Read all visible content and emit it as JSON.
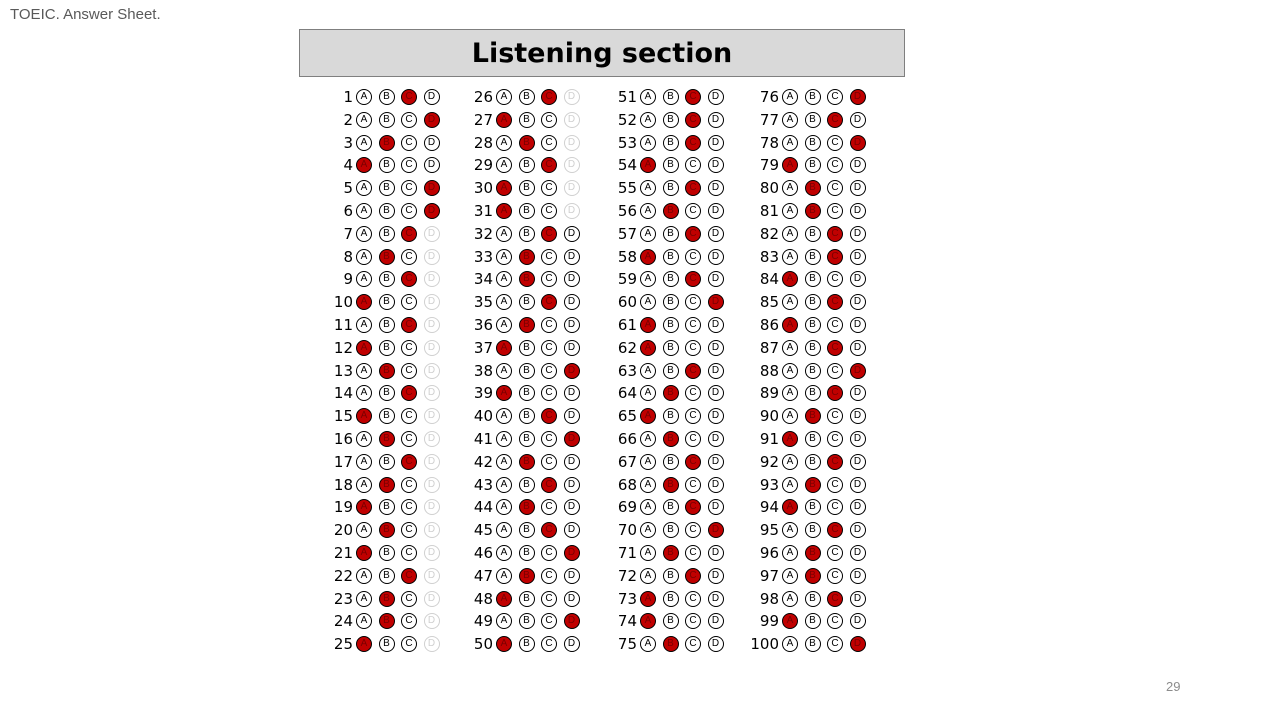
{
  "slide_title": "TOEIC. Answer Sheet.",
  "section_title": "Listening section",
  "page_number": "29",
  "options": [
    "A",
    "B",
    "C",
    "D"
  ],
  "colors": {
    "filled_bubble": "#c00000",
    "header_bg": "#d9d9d9"
  },
  "columns": [
    {
      "questions": [
        {
          "num": "1",
          "answer": "C",
          "faint_d": false
        },
        {
          "num": "2",
          "answer": "D",
          "faint_d": false
        },
        {
          "num": "3",
          "answer": "B",
          "faint_d": false
        },
        {
          "num": "4",
          "answer": "A",
          "faint_d": false
        },
        {
          "num": "5",
          "answer": "D",
          "faint_d": false
        },
        {
          "num": "6",
          "answer": "D",
          "faint_d": false
        },
        {
          "num": "7",
          "answer": "C",
          "faint_d": true
        },
        {
          "num": "8",
          "answer": "B",
          "faint_d": true
        },
        {
          "num": "9",
          "answer": "C",
          "faint_d": true
        },
        {
          "num": "10",
          "answer": "A",
          "faint_d": true
        },
        {
          "num": "11",
          "answer": "C",
          "faint_d": true
        },
        {
          "num": "12",
          "answer": "A",
          "faint_d": true
        },
        {
          "num": "13",
          "answer": "B",
          "faint_d": true
        },
        {
          "num": "14",
          "answer": "C",
          "faint_d": true
        },
        {
          "num": "15",
          "answer": "A",
          "faint_d": true
        },
        {
          "num": "16",
          "answer": "B",
          "faint_d": true
        },
        {
          "num": "17",
          "answer": "C",
          "faint_d": true
        },
        {
          "num": "18",
          "answer": "B",
          "faint_d": true
        },
        {
          "num": "19",
          "answer": "A",
          "faint_d": true
        },
        {
          "num": "20",
          "answer": "B",
          "faint_d": true
        },
        {
          "num": "21",
          "answer": "A",
          "faint_d": true
        },
        {
          "num": "22",
          "answer": "C",
          "faint_d": true
        },
        {
          "num": "23",
          "answer": "B",
          "faint_d": true
        },
        {
          "num": "24",
          "answer": "B",
          "faint_d": true
        },
        {
          "num": "25",
          "answer": "A",
          "faint_d": true
        }
      ]
    },
    {
      "questions": [
        {
          "num": "26",
          "answer": "C",
          "faint_d": true
        },
        {
          "num": "27",
          "answer": "A",
          "faint_d": true
        },
        {
          "num": "28",
          "answer": "B",
          "faint_d": true
        },
        {
          "num": "29",
          "answer": "C",
          "faint_d": true
        },
        {
          "num": "30",
          "answer": "A",
          "faint_d": true
        },
        {
          "num": "31",
          "answer": "A",
          "faint_d": true
        },
        {
          "num": "32",
          "answer": "C",
          "faint_d": false
        },
        {
          "num": "33",
          "answer": "B",
          "faint_d": false
        },
        {
          "num": "34",
          "answer": "B",
          "faint_d": false
        },
        {
          "num": "35",
          "answer": "C",
          "faint_d": false
        },
        {
          "num": "36",
          "answer": "B",
          "faint_d": false
        },
        {
          "num": "37",
          "answer": "A",
          "faint_d": false
        },
        {
          "num": "38",
          "answer": "D",
          "faint_d": false
        },
        {
          "num": "39",
          "answer": "A",
          "faint_d": false
        },
        {
          "num": "40",
          "answer": "C",
          "faint_d": false
        },
        {
          "num": "41",
          "answer": "D",
          "faint_d": false
        },
        {
          "num": "42",
          "answer": "B",
          "faint_d": false
        },
        {
          "num": "43",
          "answer": "C",
          "faint_d": false
        },
        {
          "num": "44",
          "answer": "B",
          "faint_d": false
        },
        {
          "num": "45",
          "answer": "C",
          "faint_d": false
        },
        {
          "num": "46",
          "answer": "D",
          "faint_d": false
        },
        {
          "num": "47",
          "answer": "B",
          "faint_d": false
        },
        {
          "num": "48",
          "answer": "A",
          "faint_d": false
        },
        {
          "num": "49",
          "answer": "D",
          "faint_d": false
        },
        {
          "num": "50",
          "answer": "A",
          "faint_d": false
        }
      ]
    },
    {
      "questions": [
        {
          "num": "51",
          "answer": "C",
          "faint_d": false
        },
        {
          "num": "52",
          "answer": "C",
          "faint_d": false
        },
        {
          "num": "53",
          "answer": "C",
          "faint_d": false
        },
        {
          "num": "54",
          "answer": "A",
          "faint_d": false
        },
        {
          "num": "55",
          "answer": "C",
          "faint_d": false
        },
        {
          "num": "56",
          "answer": "B",
          "faint_d": false
        },
        {
          "num": "57",
          "answer": "C",
          "faint_d": false
        },
        {
          "num": "58",
          "answer": "A",
          "faint_d": false
        },
        {
          "num": "59",
          "answer": "C",
          "faint_d": false
        },
        {
          "num": "60",
          "answer": "D",
          "faint_d": false
        },
        {
          "num": "61",
          "answer": "A",
          "faint_d": false
        },
        {
          "num": "62",
          "answer": "A",
          "faint_d": false
        },
        {
          "num": "63",
          "answer": "C",
          "faint_d": false
        },
        {
          "num": "64",
          "answer": "B",
          "faint_d": false
        },
        {
          "num": "65",
          "answer": "A",
          "faint_d": false
        },
        {
          "num": "66",
          "answer": "B",
          "faint_d": false
        },
        {
          "num": "67",
          "answer": "C",
          "faint_d": false
        },
        {
          "num": "68",
          "answer": "B",
          "faint_d": false
        },
        {
          "num": "69",
          "answer": "C",
          "faint_d": false
        },
        {
          "num": "70",
          "answer": "D",
          "faint_d": false
        },
        {
          "num": "71",
          "answer": "B",
          "faint_d": false
        },
        {
          "num": "72",
          "answer": "C",
          "faint_d": false
        },
        {
          "num": "73",
          "answer": "A",
          "faint_d": false
        },
        {
          "num": "74",
          "answer": "A",
          "faint_d": false
        },
        {
          "num": "75",
          "answer": "B",
          "faint_d": false
        }
      ]
    },
    {
      "questions": [
        {
          "num": "76",
          "answer": "D",
          "faint_d": false
        },
        {
          "num": "77",
          "answer": "C",
          "faint_d": false
        },
        {
          "num": "78",
          "answer": "D",
          "faint_d": false
        },
        {
          "num": "79",
          "answer": "A",
          "faint_d": false
        },
        {
          "num": "80",
          "answer": "B",
          "faint_d": false
        },
        {
          "num": "81",
          "answer": "B",
          "faint_d": false
        },
        {
          "num": "82",
          "answer": "C",
          "faint_d": false
        },
        {
          "num": "83",
          "answer": "C",
          "faint_d": false
        },
        {
          "num": "84",
          "answer": "A",
          "faint_d": false
        },
        {
          "num": "85",
          "answer": "C",
          "faint_d": false
        },
        {
          "num": "86",
          "answer": "A",
          "faint_d": false
        },
        {
          "num": "87",
          "answer": "C",
          "faint_d": false
        },
        {
          "num": "88",
          "answer": "D",
          "faint_d": false
        },
        {
          "num": "89",
          "answer": "C",
          "faint_d": false
        },
        {
          "num": "90",
          "answer": "B",
          "faint_d": false
        },
        {
          "num": "91",
          "answer": "A",
          "faint_d": false
        },
        {
          "num": "92",
          "answer": "C",
          "faint_d": false
        },
        {
          "num": "93",
          "answer": "B",
          "faint_d": false
        },
        {
          "num": "94",
          "answer": "A",
          "faint_d": false
        },
        {
          "num": "95",
          "answer": "C",
          "faint_d": false
        },
        {
          "num": "96",
          "answer": "B",
          "faint_d": false
        },
        {
          "num": "97",
          "answer": "B",
          "faint_d": false
        },
        {
          "num": "98",
          "answer": "C",
          "faint_d": false
        },
        {
          "num": "99",
          "answer": "A",
          "faint_d": false
        },
        {
          "num": "100",
          "answer": "D",
          "faint_d": false
        }
      ]
    }
  ]
}
